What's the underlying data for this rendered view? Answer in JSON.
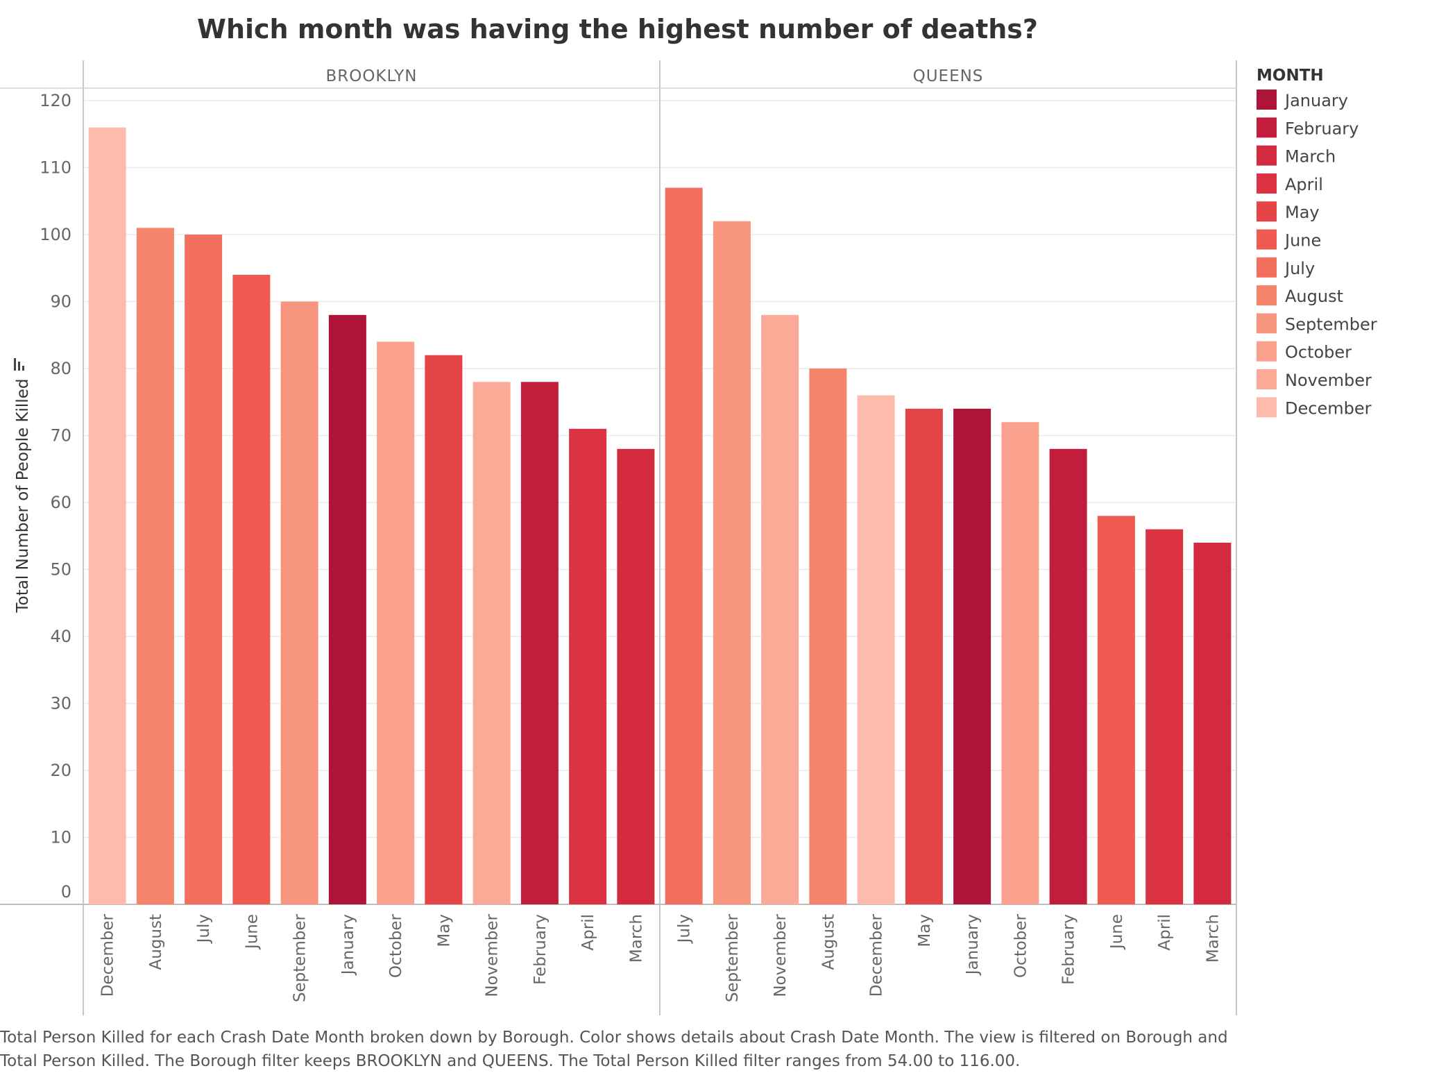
{
  "chart_data": {
    "type": "bar",
    "title": "Which month was having the highest number of deaths?",
    "ylabel": "Total Number of People Killed",
    "xlabel": "",
    "ylim": [
      0,
      120
    ],
    "yticks": [
      0,
      10,
      20,
      30,
      40,
      50,
      60,
      70,
      80,
      90,
      100,
      110,
      120
    ],
    "grid": true,
    "legend": {
      "title": "MONTH",
      "placement": "right",
      "entries": [
        {
          "label": "January",
          "color": "#ad1438"
        },
        {
          "label": "February",
          "color": "#c21d3c"
        },
        {
          "label": "March",
          "color": "#d42a40"
        },
        {
          "label": "April",
          "color": "#db3342"
        },
        {
          "label": "May",
          "color": "#e54446"
        },
        {
          "label": "June",
          "color": "#ef5b50"
        },
        {
          "label": "July",
          "color": "#f3705e"
        },
        {
          "label": "August",
          "color": "#f6836c"
        },
        {
          "label": "September",
          "color": "#f8957f"
        },
        {
          "label": "October",
          "color": "#f9a18d"
        },
        {
          "label": "November",
          "color": "#fbaa98"
        },
        {
          "label": "December",
          "color": "#fdbbae"
        }
      ]
    },
    "panels": [
      {
        "name": "BROOKLYN",
        "categories": [
          "December",
          "August",
          "July",
          "June",
          "September",
          "January",
          "October",
          "May",
          "November",
          "February",
          "April",
          "March"
        ],
        "values": [
          116,
          101,
          100,
          94,
          90,
          88,
          84,
          82,
          78,
          78,
          71,
          68
        ]
      },
      {
        "name": "QUEENS",
        "categories": [
          "July",
          "September",
          "November",
          "August",
          "December",
          "May",
          "January",
          "October",
          "February",
          "June",
          "April",
          "March"
        ],
        "values": [
          107,
          102,
          88,
          80,
          76,
          74,
          74,
          72,
          68,
          58,
          56,
          54
        ]
      }
    ]
  },
  "caption": {
    "line1": "Total Person Killed for each Crash Date Month broken down by Borough.  Color shows details about Crash Date Month. The view is filtered on Borough and",
    "line2": "Total Person Killed. The Borough filter keeps BROOKLYN and QUEENS. The Total Person Killed filter ranges from 54.00 to 116.00."
  }
}
